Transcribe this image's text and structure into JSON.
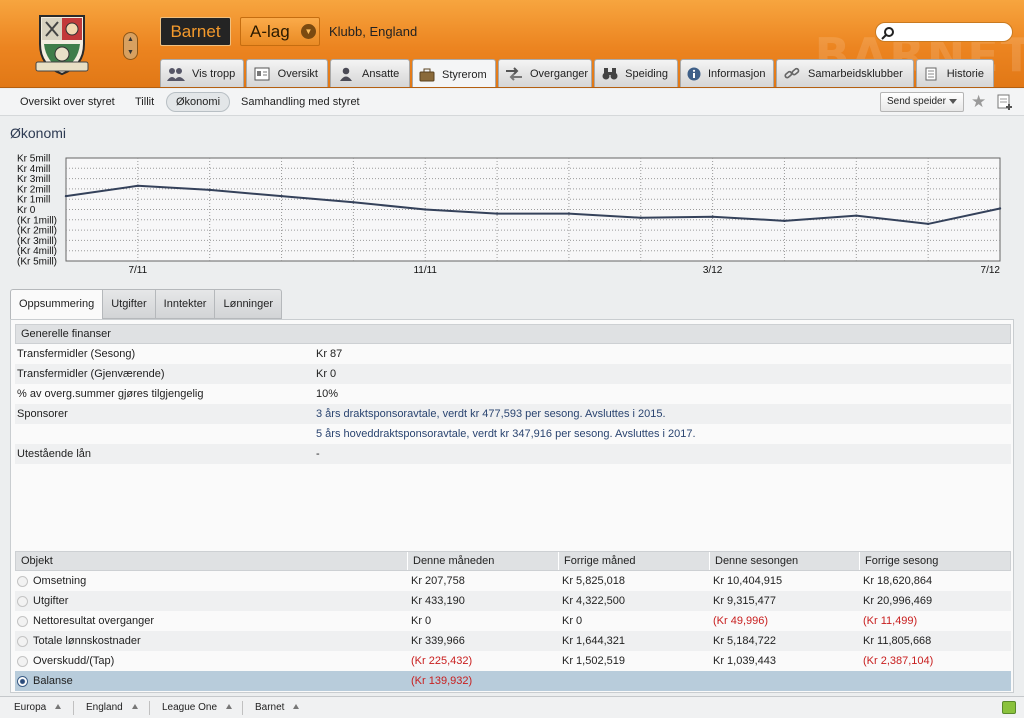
{
  "header": {
    "club_button": "Barnet",
    "team_selector": "A-lag",
    "club_subtitle": "Klubb, England",
    "search_placeholder": "",
    "watermark": "BARNET"
  },
  "nav_tabs": [
    {
      "label": "Vis tropp",
      "icon": "squad-icon"
    },
    {
      "label": "Oversikt",
      "icon": "overview-icon"
    },
    {
      "label": "Ansatte",
      "icon": "staff-icon"
    },
    {
      "label": "Styrerom",
      "icon": "boardroom-icon",
      "active": true
    },
    {
      "label": "Overganger",
      "icon": "transfers-icon"
    },
    {
      "label": "Speiding",
      "icon": "binoculars-icon"
    },
    {
      "label": "Informasjon",
      "icon": "info-icon"
    },
    {
      "label": "Samarbeidsklubber",
      "icon": "link-icon"
    },
    {
      "label": "Historie",
      "icon": "history-icon"
    }
  ],
  "sub_nav": {
    "items": [
      "Oversikt over styret",
      "Tillit",
      "Økonomi",
      "Samhandling med styret"
    ],
    "active": "Økonomi",
    "send_button": "Send speider"
  },
  "page_title": "Økonomi",
  "chart_data": {
    "type": "line",
    "x_labels": [
      "7/11",
      "11/11",
      "3/12",
      "7/12"
    ],
    "y_tick_labels": [
      "Kr 5mill",
      "Kr 4mill",
      "Kr 3mill",
      "Kr 2mill",
      "Kr 1mill",
      "Kr 0",
      "(Kr 1mill)",
      "(Kr 2mill)",
      "(Kr 3mill)",
      "(Kr 4mill)",
      "(Kr 5mill)"
    ],
    "ylim": [
      -5,
      5
    ],
    "y_unit": "mill kr",
    "grid": true,
    "values": [
      1.3,
      2.3,
      1.9,
      1.3,
      0.7,
      0.0,
      -0.4,
      -0.4,
      -0.8,
      -0.7,
      -1.1,
      -0.6,
      -1.4,
      0.1
    ]
  },
  "finance_tabs": [
    "Oppsummering",
    "Utgifter",
    "Inntekter",
    "Lønninger"
  ],
  "finance_active_tab": "Oppsummering",
  "general": {
    "header": "Generelle finanser",
    "rows": [
      {
        "label": "Transfermidler (Sesong)",
        "value": "Kr 87"
      },
      {
        "label": "Transfermidler (Gjenværende)",
        "value": "Kr 0"
      },
      {
        "label": "% av overg.summer gjøres tilgjengelig",
        "value": "10%"
      },
      {
        "label": "Sponsorer",
        "value": "3 års draktsponsoravtale, verdt kr 477,593 per sesong. Avsluttes i 2015."
      },
      {
        "label": "",
        "value": "5 års hoveddraktsponsoravtale, verdt kr 347,916 per sesong. Avsluttes i 2017."
      },
      {
        "label": "Utestående lån",
        "value": "-"
      }
    ]
  },
  "table": {
    "headers": [
      "Objekt",
      "Denne måneden",
      "Forrige måned",
      "Denne sesongen",
      "Forrige sesong"
    ],
    "rows": [
      {
        "name": "Omsetning",
        "cells": [
          "Kr 207,758",
          "Kr 5,825,018",
          "Kr 10,404,915",
          "Kr 18,620,864"
        ],
        "neg": [
          false,
          false,
          false,
          false
        ]
      },
      {
        "name": "Utgifter",
        "cells": [
          "Kr 433,190",
          "Kr 4,322,500",
          "Kr 9,315,477",
          "Kr 20,996,469"
        ],
        "neg": [
          false,
          false,
          false,
          false
        ]
      },
      {
        "name": "Nettoresultat overganger",
        "cells": [
          "Kr 0",
          "Kr 0",
          "(Kr 49,996)",
          "(Kr 11,499)"
        ],
        "neg": [
          false,
          false,
          true,
          true
        ]
      },
      {
        "name": "Totale lønnskostnader",
        "cells": [
          "Kr 339,966",
          "Kr 1,644,321",
          "Kr 5,184,722",
          "Kr 11,805,668"
        ],
        "neg": [
          false,
          false,
          false,
          false
        ]
      },
      {
        "name": "Overskudd/(Tap)",
        "cells": [
          "(Kr 225,432)",
          "Kr 1,502,519",
          "Kr 1,039,443",
          "(Kr 2,387,104)"
        ],
        "neg": [
          true,
          false,
          false,
          true
        ]
      },
      {
        "name": "Balanse",
        "cells": [
          "(Kr 139,932)",
          "",
          "",
          ""
        ],
        "neg": [
          true,
          false,
          false,
          false
        ],
        "selected": true
      }
    ]
  },
  "breadcrumbs": [
    "Europa",
    "England",
    "League One",
    "Barnet"
  ],
  "colors": {
    "accent": "#ec8420",
    "negative": "#c81e1e",
    "line": "#34415a",
    "selected_row": "#b8ccdb"
  }
}
